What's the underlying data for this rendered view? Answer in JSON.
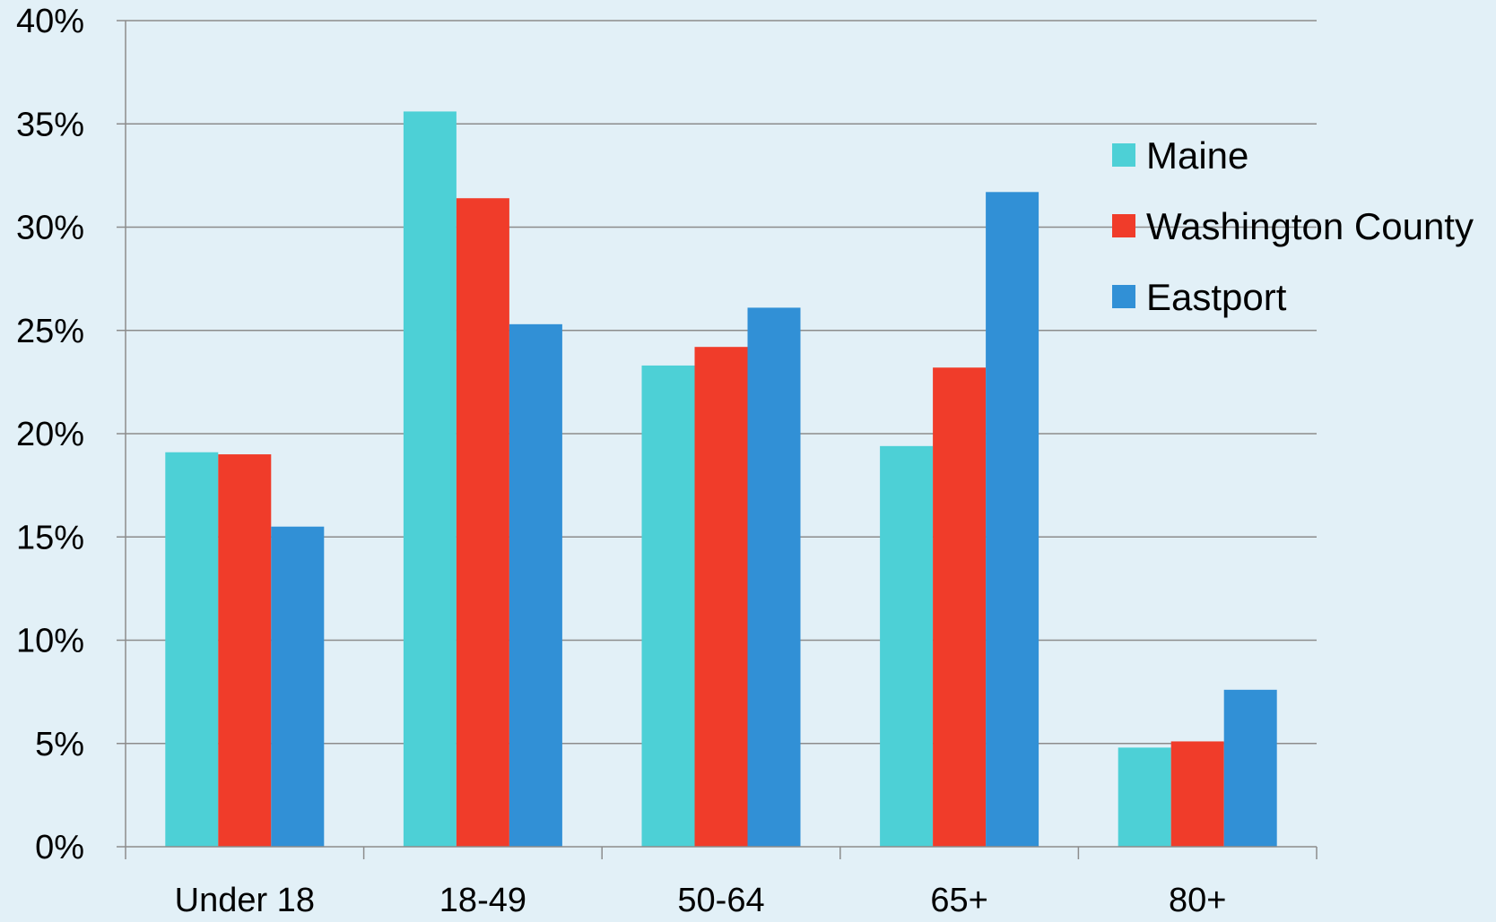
{
  "chart_data": {
    "type": "bar",
    "title": "",
    "xlabel": "",
    "ylabel": "",
    "categories": [
      "Under 18",
      "18-49",
      "50-64",
      "65+",
      "80+"
    ],
    "series": [
      {
        "name": "Maine",
        "color": "#4dd0d6",
        "values": [
          19.1,
          35.6,
          23.3,
          19.4,
          4.8
        ]
      },
      {
        "name": "Washington County",
        "color": "#f03c2a",
        "values": [
          19.0,
          31.4,
          24.2,
          23.2,
          5.1
        ]
      },
      {
        "name": "Eastport",
        "color": "#3190d6",
        "values": [
          15.5,
          25.3,
          26.1,
          31.7,
          7.6
        ]
      }
    ],
    "ylim": [
      0,
      40
    ],
    "yticks": [
      0,
      5,
      10,
      15,
      20,
      25,
      30,
      35,
      40
    ],
    "ytick_format": "percent",
    "grid": true,
    "legend_position": "right"
  }
}
